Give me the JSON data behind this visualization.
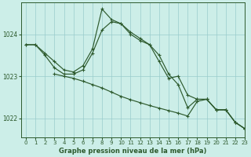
{
  "bg_color": "#cceee8",
  "grid_color": "#99cccc",
  "line_color": "#2d5a2d",
  "xlabel": "Graphe pression niveau de la mer (hPa)",
  "ylim": [
    1021.55,
    1024.75
  ],
  "xlim": [
    -0.5,
    23
  ],
  "yticks": [
    1022,
    1023,
    1024
  ],
  "xticks": [
    0,
    1,
    2,
    3,
    4,
    5,
    6,
    7,
    8,
    9,
    10,
    11,
    12,
    13,
    14,
    15,
    16,
    17,
    18,
    19,
    20,
    21,
    22,
    23
  ],
  "line1_x": [
    0,
    1,
    2,
    3,
    4,
    5,
    6,
    7,
    8,
    9,
    10,
    11,
    12,
    13,
    14,
    15,
    16,
    17,
    18,
    19,
    20,
    21,
    22,
    23
  ],
  "line1_y": [
    1023.75,
    1023.75,
    1023.55,
    1023.35,
    1023.15,
    1023.1,
    1023.25,
    1023.65,
    1024.6,
    1024.35,
    1024.25,
    1024.05,
    1023.9,
    1023.75,
    1023.5,
    1023.05,
    1022.8,
    1022.25,
    1022.45,
    1022.45,
    1022.2,
    1022.2,
    1021.9,
    1021.75
  ],
  "line2_x": [
    0,
    1,
    2,
    3,
    4,
    5,
    6,
    7,
    8,
    9,
    10,
    11,
    12,
    13,
    14,
    15,
    16,
    17,
    18,
    19,
    20,
    21,
    22,
    23
  ],
  "line2_y": [
    1023.75,
    1023.75,
    1023.5,
    1023.2,
    1023.05,
    1023.05,
    1023.15,
    1023.55,
    1024.1,
    1024.3,
    1024.25,
    1024.0,
    1023.85,
    1023.75,
    1023.35,
    1022.95,
    1023.0,
    1022.55,
    1022.45,
    1022.45,
    1022.2,
    1022.2,
    1021.9,
    1021.75
  ],
  "line3_x": [
    3,
    4,
    5,
    6,
    7,
    8,
    9,
    10,
    11,
    12,
    13,
    14,
    15,
    16,
    17,
    18,
    19,
    20,
    21,
    22,
    23
  ],
  "line3_y": [
    1023.05,
    1023.0,
    1022.95,
    1022.88,
    1022.8,
    1022.72,
    1022.62,
    1022.52,
    1022.44,
    1022.37,
    1022.3,
    1022.24,
    1022.18,
    1022.12,
    1022.05,
    1022.4,
    1022.45,
    1022.2,
    1022.2,
    1021.9,
    1021.75
  ]
}
